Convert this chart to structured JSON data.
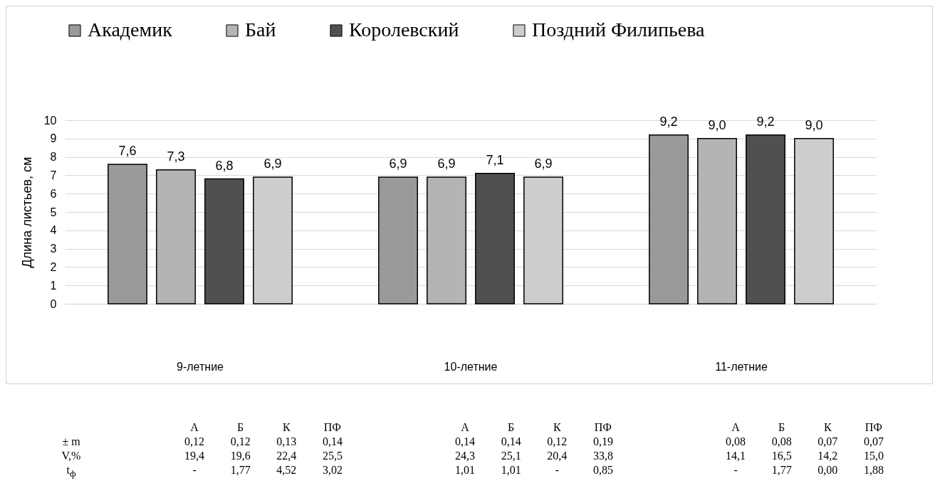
{
  "chart_data": {
    "type": "bar",
    "ylabel": "Длина листьев, см",
    "categories": [
      "9-летние",
      "10-летние",
      "11-летние"
    ],
    "series": [
      {
        "name": "Академик",
        "color": "#9a9a9a",
        "values": [
          7.6,
          6.9,
          9.2
        ],
        "value_labels": [
          "7,6",
          "6,9",
          "9,2"
        ]
      },
      {
        "name": "Бай",
        "color": "#b4b4b4",
        "values": [
          7.3,
          6.9,
          9.0
        ],
        "value_labels": [
          "7,3",
          "6,9",
          "9,0"
        ]
      },
      {
        "name": "Королевский",
        "color": "#505050",
        "values": [
          6.8,
          7.1,
          9.2
        ],
        "value_labels": [
          "6,8",
          "7,1",
          "9,2"
        ]
      },
      {
        "name": "Поздний Филипьева",
        "color": "#cdcdcd",
        "values": [
          6.9,
          6.9,
          9.0
        ],
        "value_labels": [
          "6,9",
          "6,9",
          "9,0"
        ]
      }
    ],
    "ylim": [
      0,
      10
    ],
    "yticks": [
      0,
      1,
      2,
      3,
      4,
      5,
      6,
      7,
      8,
      9,
      10
    ],
    "grid": "y",
    "legend": "top",
    "annotations": [
      "А",
      "Б",
      "К",
      "ПФ",
      "А",
      "Б",
      "К",
      "ПФ",
      "А",
      "Б",
      "К",
      "ПФ",
      "± m",
      "0,12",
      "0,12",
      "0,13",
      "0,14",
      "0,14",
      "0,14",
      "0,12",
      "0,19",
      "0,08",
      "0,08",
      "0,07",
      "0,07",
      "V,%",
      "19,4",
      "19,6",
      "22,4",
      "25,5",
      "24,3",
      "25,1",
      "20,4",
      "33,8",
      "14,1",
      "16,5",
      "14,2",
      "15,0",
      "t$_{ф}$",
      "-",
      "1,77",
      "4,52",
      "3,02",
      "1,01",
      "1,01",
      "-",
      "0,85",
      "-",
      "1,77",
      "0,00",
      "1,88"
    ]
  }
}
